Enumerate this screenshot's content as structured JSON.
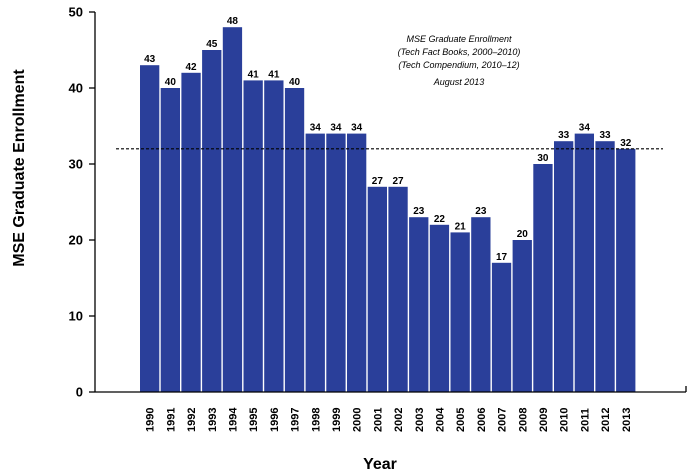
{
  "chart_data": {
    "type": "bar",
    "categories": [
      "1990",
      "1991",
      "1992",
      "1993",
      "1994",
      "1995",
      "1996",
      "1997",
      "1998",
      "1999",
      "2000",
      "2001",
      "2002",
      "2003",
      "2004",
      "2005",
      "2006",
      "2007",
      "2008",
      "2009",
      "2010",
      "2011",
      "2012",
      "2013"
    ],
    "values": [
      43,
      40,
      42,
      45,
      48,
      41,
      41,
      40,
      34,
      34,
      34,
      27,
      27,
      23,
      22,
      21,
      23,
      17,
      20,
      30,
      33,
      34,
      33,
      32
    ],
    "xlabel": "Year",
    "ylabel": "MSE Graduate Enrollment",
    "ylim": [
      0,
      50
    ],
    "yticks": [
      0,
      10,
      20,
      30,
      40,
      50
    ],
    "reference_line": 32,
    "annotation_lines": [
      "MSE Graduate Enrollment",
      "(Tech Fact Books, 2000–2010)",
      "(Tech Compendium, 2010–12)",
      "August 2013"
    ],
    "bar_color": "#2a3f9a",
    "grid": false,
    "legend": "none"
  }
}
